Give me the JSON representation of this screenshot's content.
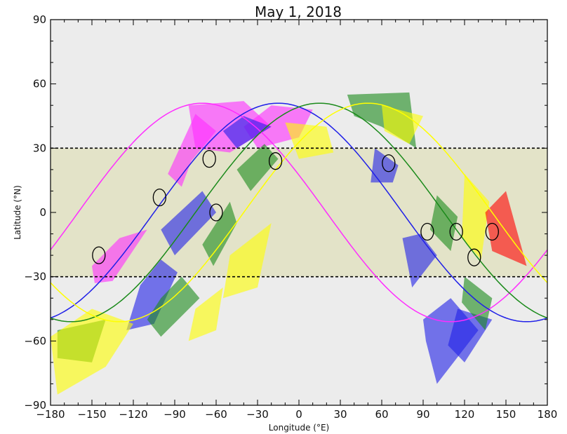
{
  "chart_data": {
    "type": "line",
    "title": "May 1, 2018",
    "xlabel": "Longitude (°E)",
    "ylabel": "Latitude (°N)",
    "xlim": [
      -180,
      180
    ],
    "ylim": [
      -90,
      90
    ],
    "xticks": [
      -180,
      -150,
      -120,
      -90,
      -60,
      -30,
      0,
      30,
      60,
      90,
      120,
      150,
      180
    ],
    "yticks": [
      -90,
      -60,
      -30,
      0,
      30,
      60,
      90
    ],
    "tropical_band": [
      -30,
      30
    ],
    "colors": {
      "background": "#ececec",
      "band": "#e3e3c8",
      "magenta": "#ff2cff",
      "blue": "#1f1fe8",
      "green": "#1a8a1a",
      "yellow": "#ffff00",
      "red": "#ff0000"
    },
    "series": [
      {
        "color": "magenta",
        "amplitude": 51,
        "phase": 160,
        "x": [
          -180,
          -150,
          -120,
          -90,
          -60,
          -30,
          0,
          30,
          60,
          90,
          120,
          150,
          180
        ],
        "y": [
          -51,
          -48,
          -33,
          -9,
          17,
          38,
          49,
          51,
          48,
          36,
          14,
          -13,
          -37
        ]
      },
      {
        "color": "blue",
        "amplitude": 51,
        "phase": 105,
        "x": [
          -180,
          -150,
          -120,
          -90,
          -60,
          -30,
          0,
          30,
          60,
          90,
          120,
          150,
          180
        ],
        "y": [
          -49,
          -51,
          -46,
          -31,
          -6,
          21,
          41,
          51,
          49,
          35,
          11,
          -16,
          -39
        ]
      },
      {
        "color": "green",
        "amplitude": 51,
        "phase": 75,
        "x": [
          -180,
          -150,
          -120,
          -90,
          -60,
          -30,
          0,
          30,
          60,
          90,
          120,
          150,
          180
        ],
        "y": [
          -45,
          -51,
          -49,
          -39,
          -17,
          9,
          33,
          48,
          51,
          43,
          23,
          -3,
          -29
        ]
      },
      {
        "color": "yellow",
        "amplitude": 51,
        "phase": 40,
        "x": [
          -180,
          -150,
          -120,
          -90,
          -60,
          -30,
          0,
          30,
          60,
          90,
          120,
          150,
          180
        ],
        "y": [
          -38,
          -49,
          -51,
          -46,
          -29,
          -5,
          20,
          41,
          50,
          48,
          34,
          12,
          -15
        ]
      }
    ],
    "shaded_regions": [
      {
        "color": "magenta",
        "points": [
          [
            -150,
            -25
          ],
          [
            -130,
            -12
          ],
          [
            -110,
            -8
          ],
          [
            -135,
            -32
          ],
          [
            -148,
            -33
          ]
        ]
      },
      {
        "color": "magenta",
        "points": [
          [
            -85,
            12
          ],
          [
            -78,
            24
          ],
          [
            -60,
            38
          ],
          [
            -75,
            46
          ],
          [
            -95,
            18
          ]
        ]
      },
      {
        "color": "magenta",
        "points": [
          [
            -80,
            50
          ],
          [
            -40,
            52
          ],
          [
            -20,
            40
          ],
          [
            -50,
            28
          ],
          [
            -75,
            30
          ]
        ]
      },
      {
        "color": "magenta",
        "points": [
          [
            -40,
            40
          ],
          [
            -20,
            50
          ],
          [
            10,
            48
          ],
          [
            0,
            35
          ],
          [
            -30,
            30
          ]
        ]
      },
      {
        "color": "blue",
        "points": [
          [
            -115,
            -34
          ],
          [
            -100,
            -22
          ],
          [
            -88,
            -28
          ],
          [
            -105,
            -52
          ],
          [
            -125,
            -55
          ]
        ]
      },
      {
        "color": "blue",
        "points": [
          [
            -70,
            10
          ],
          [
            -100,
            -8
          ],
          [
            -90,
            -20
          ],
          [
            -60,
            0
          ]
        ]
      },
      {
        "color": "blue",
        "points": [
          [
            -55,
            38
          ],
          [
            -40,
            45
          ],
          [
            -20,
            40
          ],
          [
            -45,
            30
          ]
        ]
      },
      {
        "color": "blue",
        "points": [
          [
            55,
            30
          ],
          [
            72,
            22
          ],
          [
            68,
            14
          ],
          [
            52,
            14
          ]
        ]
      },
      {
        "color": "blue",
        "points": [
          [
            88,
            -10
          ],
          [
            100,
            -20
          ],
          [
            82,
            -35
          ],
          [
            75,
            -12
          ]
        ]
      },
      {
        "color": "blue",
        "points": [
          [
            90,
            -50
          ],
          [
            110,
            -40
          ],
          [
            130,
            -55
          ],
          [
            100,
            -80
          ],
          [
            92,
            -60
          ]
        ]
      },
      {
        "color": "blue",
        "points": [
          [
            115,
            -45
          ],
          [
            140,
            -50
          ],
          [
            120,
            -70
          ],
          [
            108,
            -62
          ]
        ]
      },
      {
        "color": "green",
        "points": [
          [
            -100,
            -40
          ],
          [
            -85,
            -30
          ],
          [
            -72,
            -40
          ],
          [
            -100,
            -58
          ],
          [
            -110,
            -50
          ]
        ]
      },
      {
        "color": "green",
        "points": [
          [
            -70,
            -15
          ],
          [
            -50,
            5
          ],
          [
            -45,
            -5
          ],
          [
            -62,
            -25
          ]
        ]
      },
      {
        "color": "green",
        "points": [
          [
            -45,
            20
          ],
          [
            -25,
            32
          ],
          [
            -15,
            25
          ],
          [
            -35,
            10
          ]
        ]
      },
      {
        "color": "green",
        "points": [
          [
            35,
            55
          ],
          [
            80,
            56
          ],
          [
            85,
            30
          ],
          [
            60,
            40
          ],
          [
            40,
            45
          ]
        ]
      },
      {
        "color": "green",
        "points": [
          [
            100,
            8
          ],
          [
            115,
            -2
          ],
          [
            110,
            -18
          ],
          [
            95,
            -8
          ]
        ]
      },
      {
        "color": "green",
        "points": [
          [
            120,
            -30
          ],
          [
            140,
            -40
          ],
          [
            135,
            -55
          ],
          [
            118,
            -42
          ]
        ]
      },
      {
        "color": "green",
        "points": [
          [
            -175,
            -55
          ],
          [
            -140,
            -50
          ],
          [
            -150,
            -70
          ],
          [
            -175,
            -68
          ]
        ]
      },
      {
        "color": "yellow",
        "points": [
          [
            -180,
            -58
          ],
          [
            -150,
            -45
          ],
          [
            -120,
            -52
          ],
          [
            -140,
            -72
          ],
          [
            -175,
            -85
          ]
        ]
      },
      {
        "color": "yellow",
        "points": [
          [
            -50,
            -20
          ],
          [
            -20,
            -5
          ],
          [
            -30,
            -35
          ],
          [
            -55,
            -40
          ]
        ]
      },
      {
        "color": "yellow",
        "points": [
          [
            -75,
            -45
          ],
          [
            -55,
            -35
          ],
          [
            -60,
            -55
          ],
          [
            -80,
            -60
          ]
        ]
      },
      {
        "color": "yellow",
        "points": [
          [
            -10,
            42
          ],
          [
            20,
            40
          ],
          [
            25,
            28
          ],
          [
            0,
            25
          ]
        ]
      },
      {
        "color": "yellow",
        "points": [
          [
            60,
            50
          ],
          [
            90,
            45
          ],
          [
            80,
            32
          ],
          [
            62,
            38
          ]
        ]
      },
      {
        "color": "yellow",
        "points": [
          [
            120,
            18
          ],
          [
            138,
            5
          ],
          [
            132,
            -22
          ],
          [
            118,
            -12
          ]
        ]
      },
      {
        "color": "red",
        "points": [
          [
            135,
            0
          ],
          [
            150,
            10
          ],
          [
            165,
            -25
          ],
          [
            140,
            -18
          ]
        ]
      }
    ],
    "ellipses": [
      {
        "x": -145,
        "y": -20
      },
      {
        "x": -101,
        "y": 7
      },
      {
        "x": -65,
        "y": 25
      },
      {
        "x": -60,
        "y": 0
      },
      {
        "x": -17,
        "y": 24
      },
      {
        "x": 65,
        "y": 23
      },
      {
        "x": 93,
        "y": -9
      },
      {
        "x": 114,
        "y": -9
      },
      {
        "x": 127,
        "y": -21
      },
      {
        "x": 140,
        "y": -9
      }
    ]
  }
}
